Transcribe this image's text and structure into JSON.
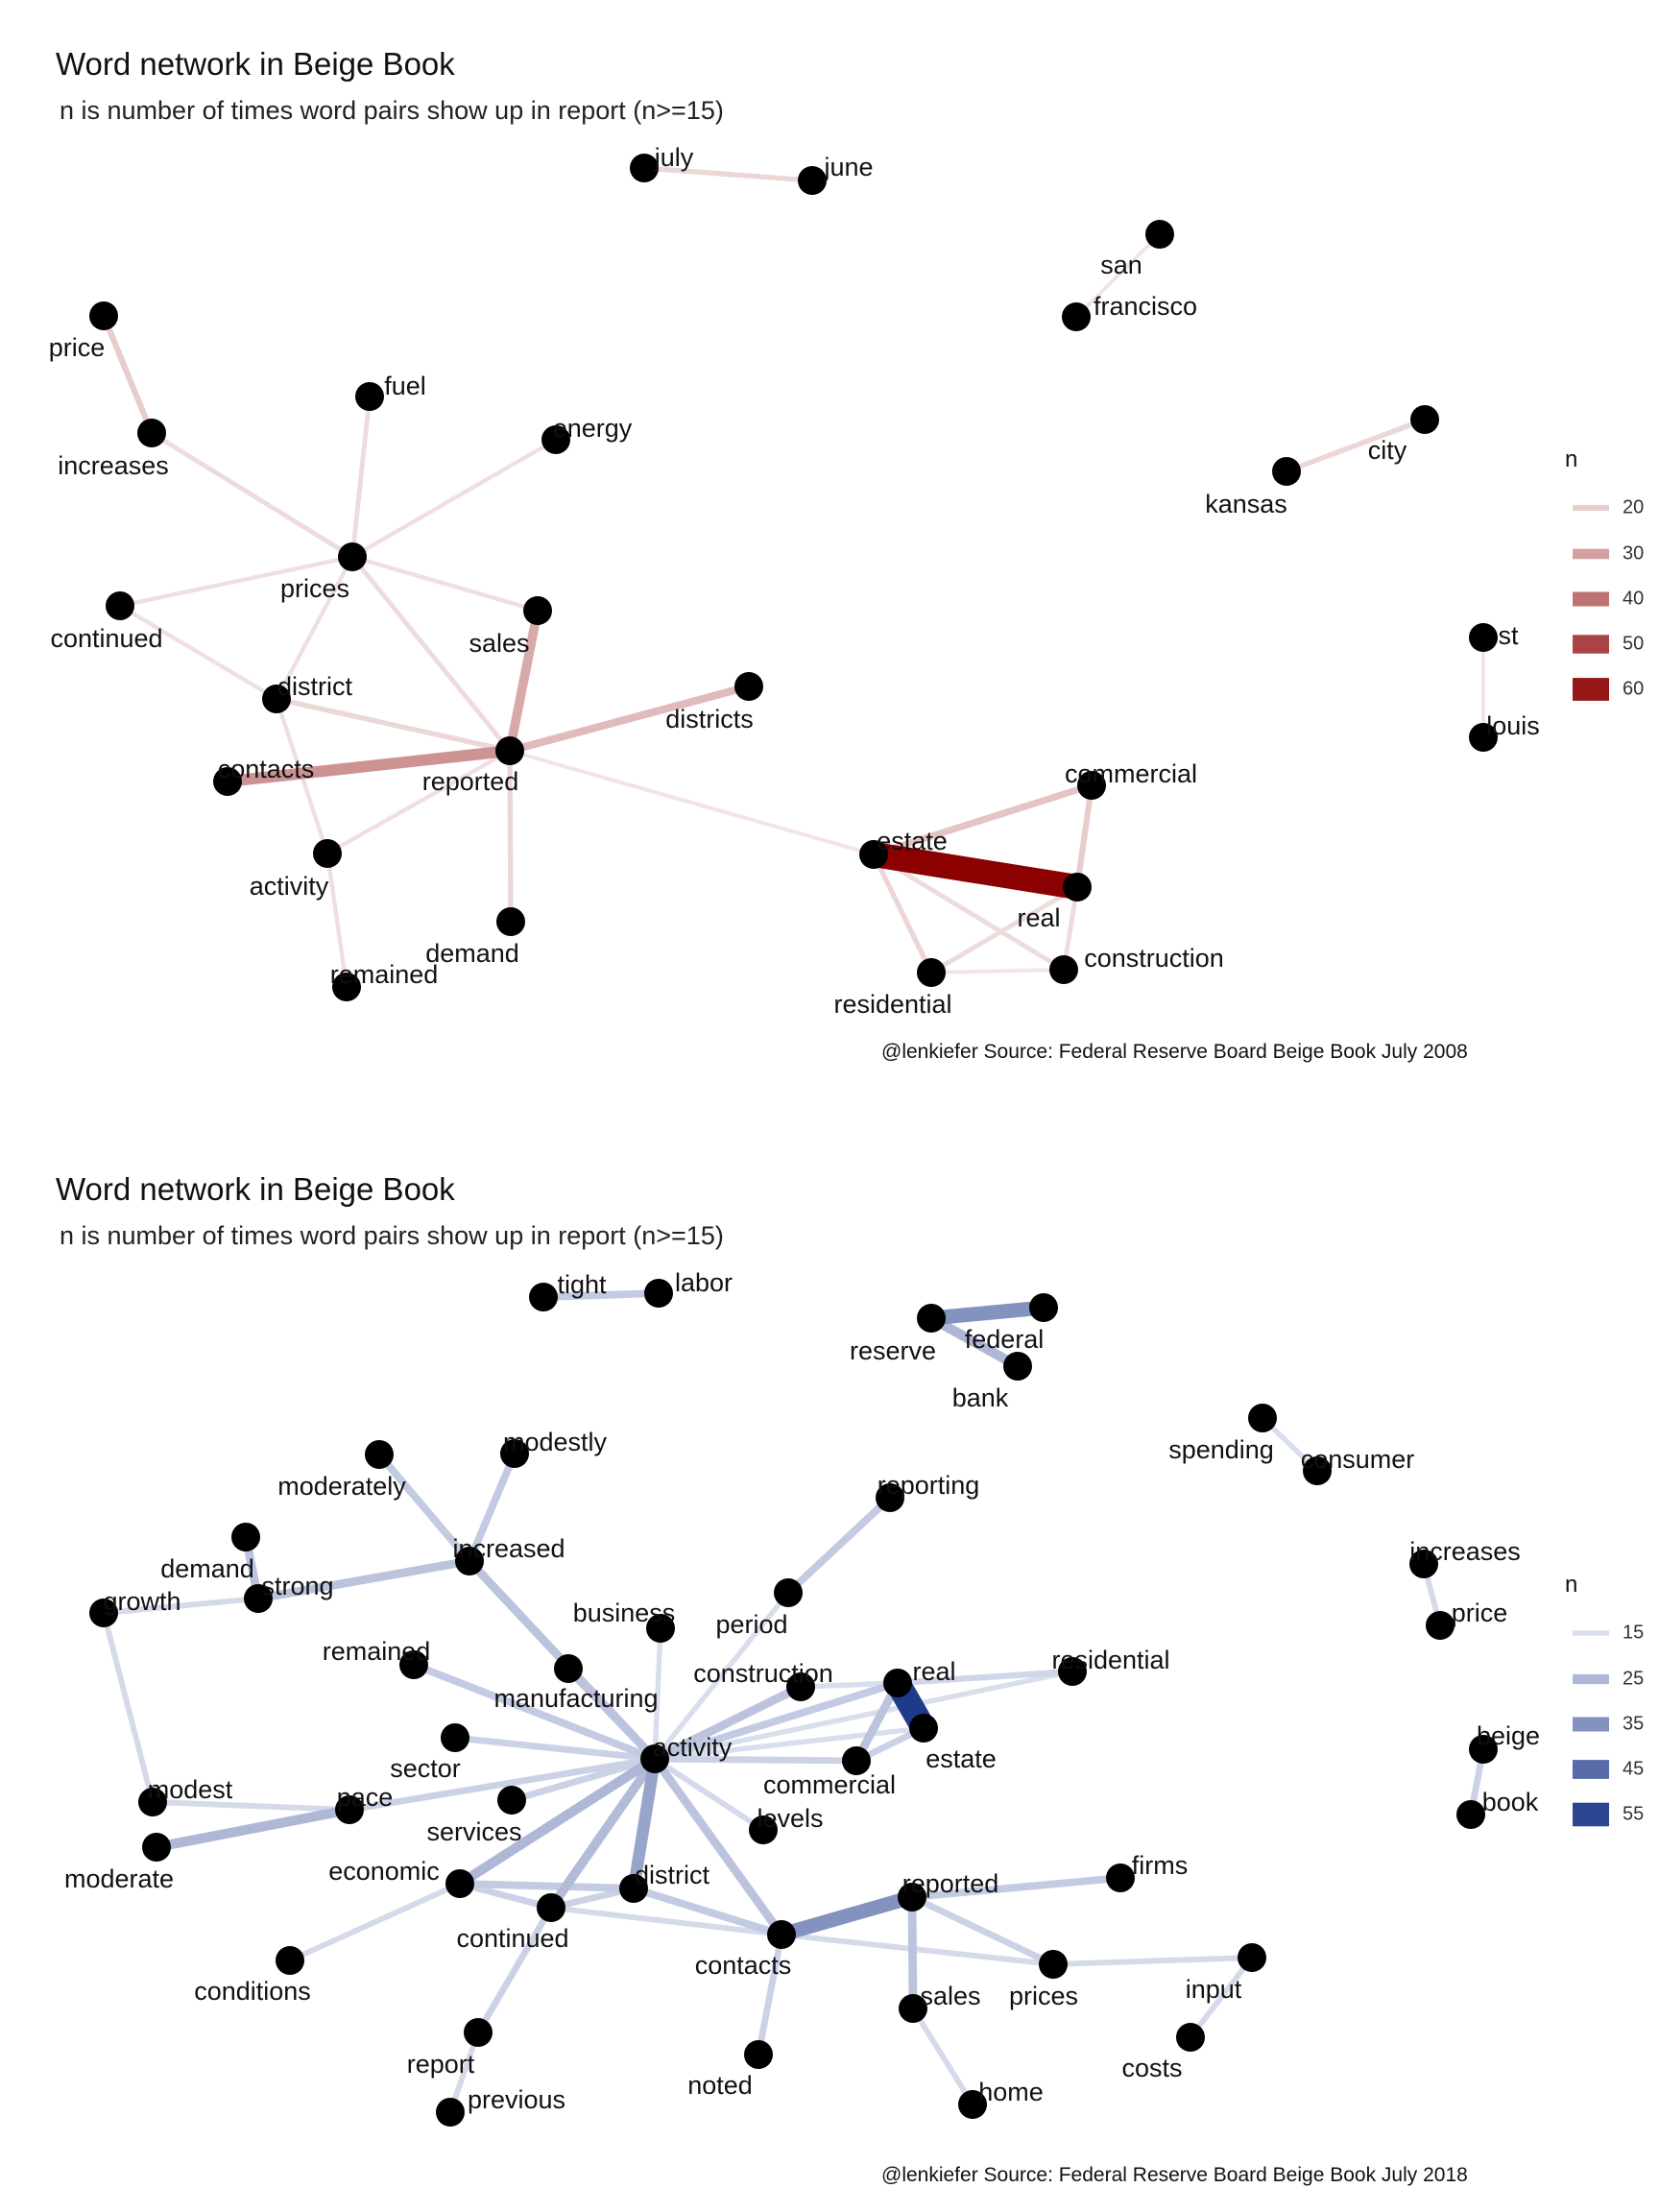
{
  "panels": [
    {
      "id": "2008",
      "title": "Word network in Beige Book",
      "subtitle": "n is number of times word pairs show up in report (n>=15)",
      "caption": "@lenkiefer Source: Federal Reserve Board Beige Book July 2008",
      "color_low": "#f2e4e4",
      "color_high": "#8b0000",
      "legend": {
        "title": "n",
        "values": [
          20,
          30,
          40,
          50,
          60
        ],
        "min": 15,
        "max": 65
      },
      "edges": [
        [
          "real",
          "estate",
          65
        ],
        [
          "contacts",
          "reported",
          33
        ],
        [
          "sales",
          "reported",
          28
        ],
        [
          "reported",
          "districts",
          24
        ],
        [
          "estate",
          "commercial",
          22
        ],
        [
          "commercial",
          "real",
          20
        ],
        [
          "price",
          "increases",
          20
        ],
        [
          "kansas",
          "city",
          18
        ],
        [
          "july",
          "june",
          18
        ],
        [
          "estate",
          "residential",
          18
        ],
        [
          "estate",
          "construction",
          17
        ],
        [
          "real",
          "construction",
          17
        ],
        [
          "residential",
          "real",
          17
        ],
        [
          "increases",
          "prices",
          17
        ],
        [
          "prices",
          "fuel",
          17
        ],
        [
          "prices",
          "energy",
          16
        ],
        [
          "prices",
          "continued",
          16
        ],
        [
          "prices",
          "sales",
          16
        ],
        [
          "prices",
          "reported",
          17
        ],
        [
          "prices",
          "district",
          16
        ],
        [
          "continued",
          "district",
          16
        ],
        [
          "district",
          "reported",
          18
        ],
        [
          "district",
          "activity",
          16
        ],
        [
          "reported",
          "activity",
          16
        ],
        [
          "reported",
          "demand",
          18
        ],
        [
          "activity",
          "remained",
          16
        ],
        [
          "reported",
          "estate",
          15
        ],
        [
          "residential",
          "construction",
          15
        ],
        [
          "san",
          "francisco",
          15
        ],
        [
          "st",
          "louis",
          15
        ]
      ]
    },
    {
      "id": "2018",
      "title": "Word network in Beige Book",
      "subtitle": "n is number of times word pairs show up in report (n>=15)",
      "caption": "@lenkiefer Source: Federal Reserve Board Beige Book July 2018",
      "color_low": "#e6e9f4",
      "color_high": "#1f3a8a",
      "legend": {
        "title": "n",
        "values": [
          15,
          25,
          35,
          45,
          55
        ],
        "min": 12,
        "max": 58
      },
      "edges": [
        [
          "real",
          "estate",
          58
        ],
        [
          "contacts",
          "reported",
          35
        ],
        [
          "federal",
          "reserve",
          35
        ],
        [
          "reserve",
          "bank",
          25
        ],
        [
          "tight",
          "labor",
          20
        ],
        [
          "spending",
          "consumer",
          15
        ],
        [
          "increases",
          "price",
          16
        ],
        [
          "beige",
          "book",
          18
        ],
        [
          "modestly",
          "increased",
          20
        ],
        [
          "moderately",
          "increased",
          20
        ],
        [
          "strong",
          "increased",
          22
        ],
        [
          "demand",
          "strong",
          22
        ],
        [
          "growth",
          "strong",
          16
        ],
        [
          "growth",
          "modest",
          16
        ],
        [
          "modest",
          "pace",
          16
        ],
        [
          "moderate",
          "pace",
          25
        ],
        [
          "increased",
          "activity",
          22
        ],
        [
          "remained",
          "activity",
          20
        ],
        [
          "manufacturing",
          "activity",
          22
        ],
        [
          "business",
          "activity",
          15
        ],
        [
          "sector",
          "activity",
          18
        ],
        [
          "services",
          "activity",
          18
        ],
        [
          "pace",
          "activity",
          18
        ],
        [
          "economic",
          "activity",
          25
        ],
        [
          "continued",
          "activity",
          24
        ],
        [
          "district",
          "activity",
          30
        ],
        [
          "period",
          "activity",
          15
        ],
        [
          "reporting",
          "period",
          20
        ],
        [
          "construction",
          "activity",
          22
        ],
        [
          "real",
          "activity",
          20
        ],
        [
          "commercial",
          "activity",
          18
        ],
        [
          "estate",
          "activity",
          15
        ],
        [
          "residential",
          "activity",
          15
        ],
        [
          "levels",
          "activity",
          16
        ],
        [
          "contacts",
          "activity",
          22
        ],
        [
          "construction",
          "real",
          15
        ],
        [
          "residential",
          "real",
          17
        ],
        [
          "commercial",
          "real",
          22
        ],
        [
          "commercial",
          "estate",
          18
        ],
        [
          "economic",
          "district",
          20
        ],
        [
          "economic",
          "continued",
          18
        ],
        [
          "continued",
          "district",
          18
        ],
        [
          "conditions",
          "economic",
          16
        ],
        [
          "report",
          "continued",
          18
        ],
        [
          "report",
          "previous",
          16
        ],
        [
          "district",
          "contacts",
          20
        ],
        [
          "continued",
          "contacts",
          16
        ],
        [
          "reported",
          "firms",
          20
        ],
        [
          "reported",
          "sales",
          22
        ],
        [
          "reported",
          "prices",
          18
        ],
        [
          "contacts",
          "noted",
          18
        ],
        [
          "contacts",
          "prices",
          16
        ],
        [
          "sales",
          "home",
          16
        ],
        [
          "prices",
          "input",
          16
        ],
        [
          "input",
          "costs",
          16
        ]
      ]
    }
  ],
  "words": {
    "2008": [
      "real",
      "estate",
      "commercial",
      "construction",
      "residential",
      "reported",
      "contacts",
      "sales",
      "districts",
      "district",
      "prices",
      "fuel",
      "energy",
      "continued",
      "increases",
      "price",
      "activity",
      "remained",
      "demand",
      "july",
      "june",
      "san",
      "francisco",
      "kansas",
      "city",
      "st",
      "louis"
    ],
    "2018": [
      "tight",
      "labor",
      "reserve",
      "federal",
      "bank",
      "spending",
      "consumer",
      "increases",
      "price",
      "beige",
      "book",
      "modestly",
      "moderately",
      "increased",
      "demand",
      "strong",
      "growth",
      "modest",
      "pace",
      "moderate",
      "remained",
      "business",
      "manufacturing",
      "sector",
      "services",
      "economic",
      "conditions",
      "continued",
      "district",
      "activity",
      "period",
      "reporting",
      "construction",
      "real",
      "estate",
      "residential",
      "commercial",
      "levels",
      "contacts",
      "reported",
      "firms",
      "sales",
      "prices",
      "input",
      "costs",
      "noted",
      "home",
      "report",
      "previous"
    ]
  }
}
